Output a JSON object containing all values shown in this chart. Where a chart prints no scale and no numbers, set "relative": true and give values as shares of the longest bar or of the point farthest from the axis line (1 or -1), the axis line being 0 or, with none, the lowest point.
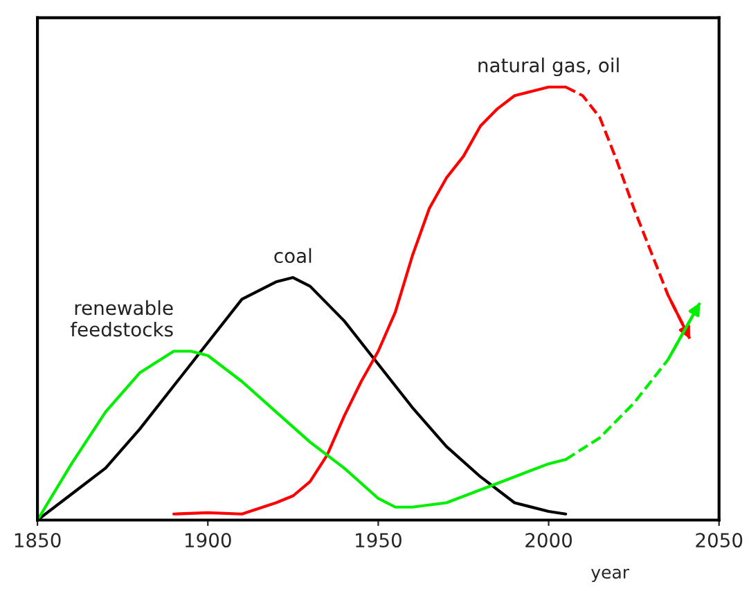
{
  "chart_data": {
    "type": "line",
    "relative": true,
    "xlabel": "year",
    "xlim": [
      1850,
      2050
    ],
    "xticks": [
      1850,
      1900,
      1950,
      2000,
      2050
    ],
    "grid": false,
    "legend": false,
    "marker": "none",
    "tick_labels": "x",
    "series": [
      {
        "name": "coal",
        "color": "#000000",
        "line_style": "solid",
        "x": [
          1850,
          1860,
          1870,
          1880,
          1890,
          1900,
          1910,
          1915,
          1920,
          1925,
          1930,
          1940,
          1950,
          1960,
          1970,
          1980,
          1990,
          2000,
          2005
        ],
        "values": [
          0,
          0.06,
          0.12,
          0.21,
          0.31,
          0.41,
          0.51,
          0.53,
          0.55,
          0.56,
          0.54,
          0.46,
          0.36,
          0.26,
          0.17,
          0.1,
          0.04,
          0.02,
          0.014
        ]
      },
      {
        "name": "natural gas, oil",
        "color": "#ff0000",
        "line_style": "solid",
        "x": [
          1890,
          1900,
          1910,
          1920,
          1925,
          1930,
          1935,
          1940,
          1945,
          1950,
          1955,
          1960,
          1965,
          1970,
          1975,
          1980,
          1985,
          1990,
          1995,
          2000,
          2005
        ],
        "values": [
          0.014,
          0.017,
          0.014,
          0.04,
          0.056,
          0.089,
          0.15,
          0.24,
          0.32,
          0.39,
          0.48,
          0.61,
          0.72,
          0.79,
          0.84,
          0.91,
          0.95,
          0.98,
          0.99,
          1,
          1
        ]
      },
      {
        "color": "#ff0000",
        "line_style": "dashed",
        "x": [
          2005,
          2010,
          2015,
          2020,
          2025,
          2030,
          2035,
          2042
        ],
        "values": [
          1,
          0.98,
          0.93,
          0.83,
          0.72,
          0.62,
          0.52,
          0.41
        ]
      },
      {
        "name": "renewable\nfeedstocks",
        "color": "#00ee00",
        "line_style": "solid",
        "x": [
          1850,
          1860,
          1870,
          1880,
          1890,
          1895,
          1900,
          1910,
          1920,
          1930,
          1940,
          1950,
          1955,
          1960,
          1970,
          1980,
          1990,
          2000,
          2005
        ],
        "values": [
          0,
          0.13,
          0.25,
          0.34,
          0.39,
          0.39,
          0.38,
          0.32,
          0.25,
          0.18,
          0.12,
          0.05,
          0.03,
          0.03,
          0.04,
          0.07,
          0.1,
          0.13,
          0.14
        ]
      },
      {
        "color": "#00ee00",
        "line_style": "dashed",
        "x": [
          2005,
          2015,
          2025,
          2035,
          2045
        ],
        "values": [
          0.14,
          0.19,
          0.27,
          0.37,
          0.51
        ]
      }
    ]
  }
}
